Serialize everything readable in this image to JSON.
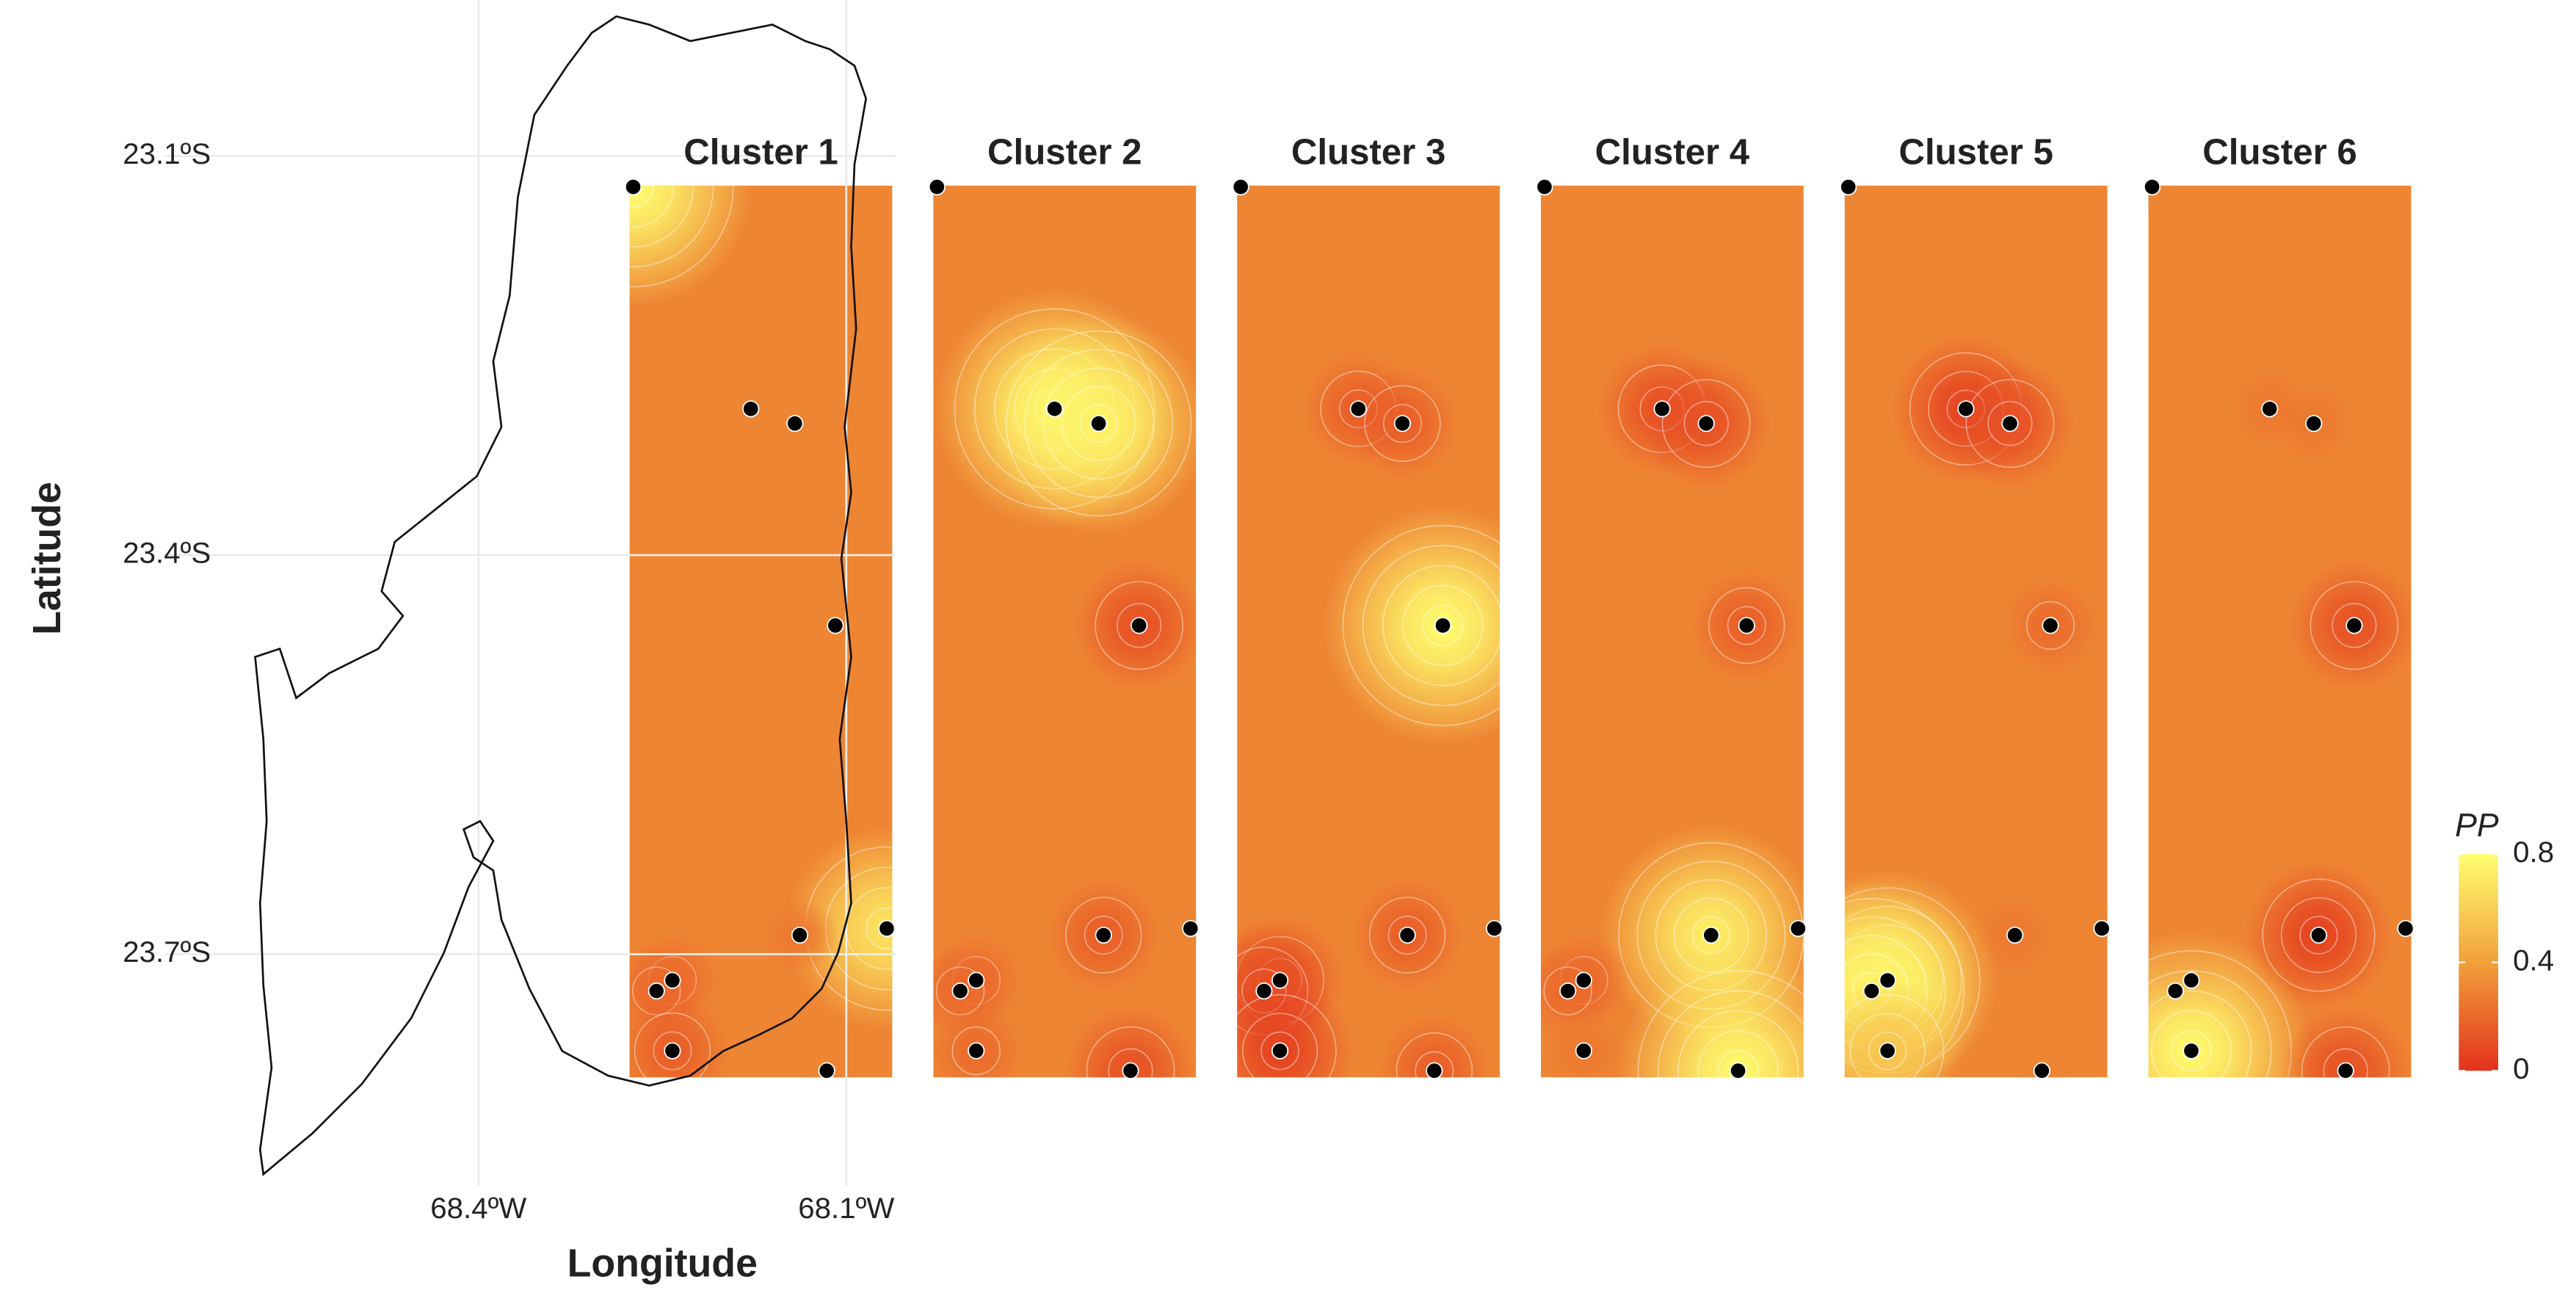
{
  "axes": {
    "y_label": "Latitude",
    "x_label": "Longitude",
    "yticks": [
      {
        "value": 23.1,
        "label": "23.1ºS"
      },
      {
        "value": 23.4,
        "label": "23.4ºS"
      },
      {
        "value": 23.7,
        "label": "23.7ºS"
      }
    ],
    "xticks": [
      {
        "value": 68.4,
        "label": "68.4ºW"
      },
      {
        "value": 68.1,
        "label": "68.1ºW"
      }
    ]
  },
  "panel_extent": {
    "xlim": [
      68.277,
      68.0625
    ],
    "ylim": [
      23.122,
      23.793
    ]
  },
  "stations": {
    "lon": [
      68.274,
      68.178,
      68.142,
      68.109,
      68.067,
      68.138,
      68.242,
      68.255,
      68.242,
      68.116
    ],
    "lat": [
      23.123,
      23.29,
      23.301,
      23.453,
      23.681,
      23.686,
      23.72,
      23.728,
      23.773,
      23.788
    ]
  },
  "background_pp": 0.3,
  "clusters": [
    {
      "title": "Cluster 1",
      "pp": [
        0.8,
        0.3,
        0.3,
        0.3,
        0.7,
        0.25,
        0.2,
        0.2,
        0.15,
        0.3
      ]
    },
    {
      "title": "Cluster 2",
      "pp": [
        0.3,
        0.8,
        0.75,
        0.1,
        0.3,
        0.15,
        0.2,
        0.2,
        0.2,
        0.1
      ]
    },
    {
      "title": "Cluster 3",
      "pp": [
        0.3,
        0.15,
        0.15,
        0.8,
        0.3,
        0.15,
        0.1,
        0.1,
        0.05,
        0.15
      ]
    },
    {
      "title": "Cluster 4",
      "pp": [
        0.3,
        0.1,
        0.1,
        0.15,
        0.3,
        0.75,
        0.2,
        0.2,
        0.25,
        0.8
      ]
    },
    {
      "title": "Cluster 5",
      "pp": [
        0.3,
        0.05,
        0.1,
        0.2,
        0.3,
        0.25,
        0.75,
        0.75,
        0.55,
        0.3
      ]
    },
    {
      "title": "Cluster 6",
      "pp": [
        0.3,
        0.25,
        0.25,
        0.1,
        0.3,
        0.05,
        0.25,
        0.25,
        0.8,
        0.1
      ]
    }
  ],
  "legend": {
    "title": "PP",
    "ticks": [
      0,
      0.4,
      0.8
    ],
    "colors": [
      "#e3321c",
      "#f2a03a",
      "#ffff70"
    ]
  }
}
